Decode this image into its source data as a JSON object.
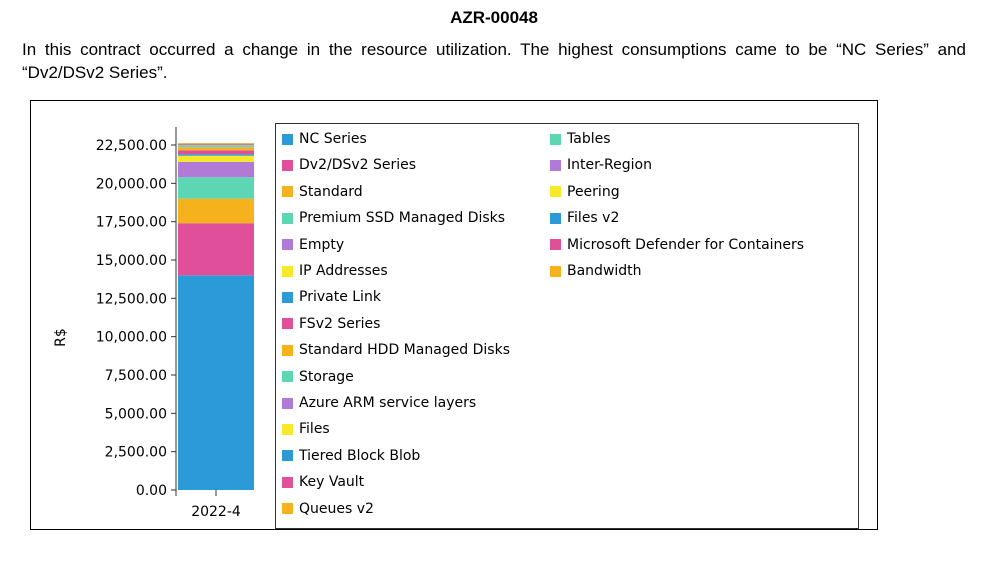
{
  "document": {
    "title": "AZR-00048",
    "paragraph": "In this contract occurred a change in the resource utilization. The highest consumptions came to be “NC Series” and “Dv2/DSv2 Series”."
  },
  "colors": {
    "blue": "#2b9ad6",
    "pink": "#e0509a",
    "orange": "#f5b21c",
    "teal": "#5dd6b3",
    "purple": "#b07ad6",
    "yellow": "#f8e82a"
  },
  "chart_data": {
    "type": "bar",
    "stacked": true,
    "categories": [
      "2022-4"
    ],
    "ylabel": "R$",
    "xlabel": "",
    "ylim": [
      0,
      22500
    ],
    "yticks": [
      "0.00",
      "2,500.00",
      "5,000.00",
      "7,500.00",
      "10,000.00",
      "12,500.00",
      "15,000.00",
      "17,500.00",
      "20,000.00",
      "22,500.00"
    ],
    "legend_position": "right",
    "series": [
      {
        "name": "NC Series",
        "color": "#2b9ad6",
        "values": [
          14000
        ]
      },
      {
        "name": "Dv2/DSv2 Series",
        "color": "#e0509a",
        "values": [
          3400
        ]
      },
      {
        "name": "Standard",
        "color": "#f5b21c",
        "values": [
          1600
        ]
      },
      {
        "name": "Premium SSD Managed Disks",
        "color": "#5dd6b3",
        "values": [
          1400
        ]
      },
      {
        "name": "Empty",
        "color": "#b07ad6",
        "values": [
          1000
        ]
      },
      {
        "name": "IP Addresses",
        "color": "#f8e82a",
        "values": [
          400
        ]
      },
      {
        "name": "Private Link",
        "color": "#2b9ad6",
        "values": [
          100
        ]
      },
      {
        "name": "FSv2 Series",
        "color": "#e0509a",
        "values": [
          250
        ]
      },
      {
        "name": "Standard HDD Managed Disks",
        "color": "#f5b21c",
        "values": [
          200
        ]
      },
      {
        "name": "Storage",
        "color": "#5dd6b3",
        "values": [
          70
        ]
      },
      {
        "name": "Azure ARM service layers",
        "color": "#b07ad6",
        "values": [
          50
        ]
      },
      {
        "name": "Files",
        "color": "#f8e82a",
        "values": [
          40
        ]
      },
      {
        "name": "Tiered Block Blob",
        "color": "#2b9ad6",
        "values": [
          30
        ]
      },
      {
        "name": "Key Vault",
        "color": "#e0509a",
        "values": [
          20
        ]
      },
      {
        "name": "Queues v2",
        "color": "#f5b21c",
        "values": [
          15
        ]
      },
      {
        "name": "Tables",
        "color": "#5dd6b3",
        "values": [
          10
        ]
      },
      {
        "name": "Inter-Region",
        "color": "#b07ad6",
        "values": [
          8
        ]
      },
      {
        "name": "Peering",
        "color": "#f8e82a",
        "values": [
          6
        ]
      },
      {
        "name": "Files v2",
        "color": "#2b9ad6",
        "values": [
          4
        ]
      },
      {
        "name": "Microsoft Defender for Containers",
        "color": "#e0509a",
        "values": [
          3
        ]
      },
      {
        "name": "Bandwidth",
        "color": "#f5b21c",
        "values": [
          2
        ]
      }
    ]
  }
}
